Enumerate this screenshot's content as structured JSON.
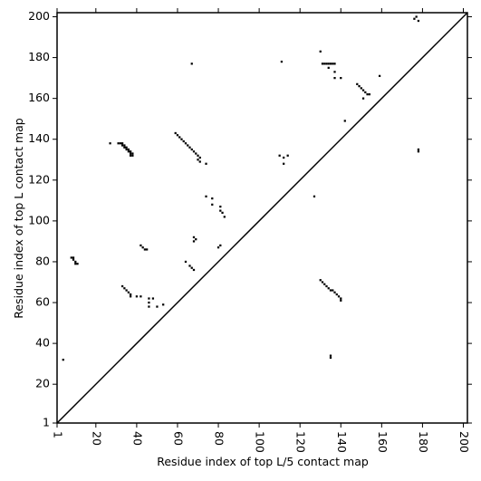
{
  "chart_data": {
    "type": "scatter",
    "xlabel": "Residue index of top L/5 contact map",
    "ylabel": "Residue index of top L contact map",
    "color": "#000000",
    "xlim": [
      1,
      202
    ],
    "ylim": [
      1,
      202
    ],
    "xticks": [
      1,
      20,
      40,
      60,
      80,
      100,
      120,
      140,
      160,
      180,
      200
    ],
    "yticks": [
      1,
      20,
      40,
      60,
      80,
      100,
      120,
      140,
      160,
      180,
      200
    ],
    "x": [
      4,
      8,
      9,
      9,
      10,
      10,
      11,
      27,
      31,
      32,
      33,
      33,
      34,
      34,
      35,
      35,
      36,
      36,
      37,
      37,
      38,
      38,
      37,
      33,
      34,
      35,
      36,
      37,
      37,
      40,
      42,
      42,
      43,
      44,
      45,
      46,
      46,
      46,
      48,
      50,
      53,
      59,
      60,
      61,
      62,
      63,
      64,
      65,
      66,
      67,
      68,
      69,
      70,
      70,
      71,
      71,
      74,
      64,
      66,
      67,
      68,
      68,
      68,
      69,
      67,
      74,
      77,
      77,
      80,
      81,
      81,
      82,
      83,
      81,
      110,
      111,
      112,
      112,
      114,
      127,
      130,
      131,
      132,
      133,
      134,
      135,
      136,
      137,
      134,
      137,
      137,
      140,
      130,
      131,
      132,
      133,
      134,
      135,
      136,
      137,
      138,
      139,
      140,
      140,
      135,
      135,
      142,
      148,
      149,
      150,
      151,
      152,
      153,
      154,
      151,
      159,
      176,
      177,
      178,
      178,
      178
    ],
    "y": [
      32,
      82,
      82,
      81,
      80,
      79,
      79,
      138,
      138,
      138,
      138,
      137,
      137,
      136,
      136,
      135,
      135,
      134,
      134,
      133,
      133,
      132,
      132,
      68,
      67,
      66,
      65,
      64,
      63,
      63,
      63,
      88,
      87,
      86,
      86,
      62,
      60,
      58,
      62,
      58,
      59,
      143,
      142,
      141,
      140,
      139,
      138,
      137,
      136,
      135,
      134,
      133,
      132,
      130,
      129,
      131,
      128,
      80,
      78,
      77,
      76,
      92,
      90,
      91,
      177,
      112,
      111,
      108,
      87,
      88,
      105,
      104,
      102,
      107,
      132,
      178,
      128,
      131,
      132,
      112,
      183,
      177,
      177,
      177,
      177,
      177,
      177,
      177,
      175,
      173,
      170,
      170,
      71,
      70,
      69,
      68,
      67,
      66,
      66,
      65,
      64,
      63,
      62,
      61,
      33,
      34,
      149,
      167,
      166,
      165,
      164,
      163,
      162,
      162,
      160,
      171,
      199,
      200,
      198,
      134,
      135
    ]
  }
}
